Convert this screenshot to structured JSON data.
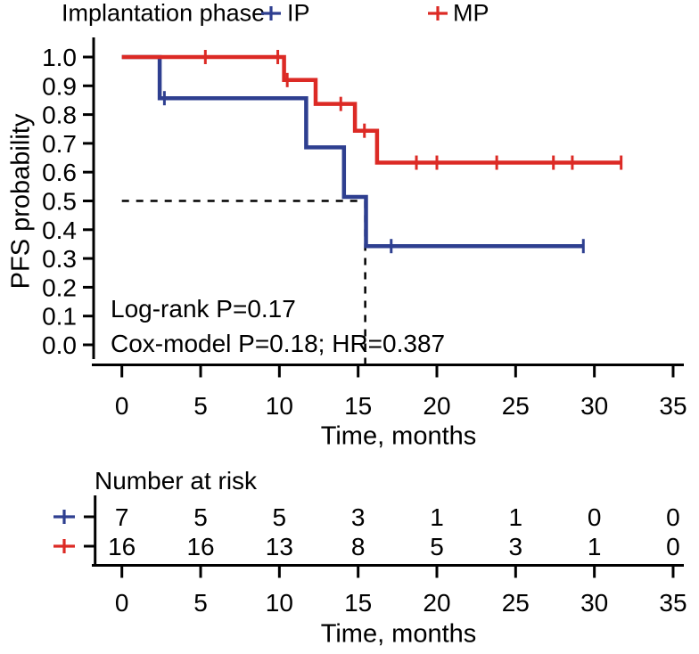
{
  "legend": {
    "title": "Implantation phase",
    "series": [
      {
        "label": "IP",
        "color": "#2e3f90"
      },
      {
        "label": "MP",
        "color": "#dc2a25"
      }
    ]
  },
  "chart_data": {
    "type": "line",
    "subtype": "kaplan-meier-step",
    "title": "",
    "xlabel": "Time, months",
    "ylabel": "PFS probability",
    "xlim": [
      0,
      35
    ],
    "ylim": [
      0.0,
      1.0
    ],
    "x_ticks": [
      0,
      5,
      10,
      15,
      20,
      25,
      30,
      35
    ],
    "y_ticks": [
      0.0,
      0.1,
      0.2,
      0.3,
      0.4,
      0.5,
      0.6,
      0.7,
      0.8,
      0.9,
      1.0
    ],
    "grid": false,
    "legend_position": "top",
    "series": [
      {
        "name": "IP",
        "color": "#2e3f90",
        "steps": [
          [
            0,
            1.0
          ],
          [
            2.4,
            1.0
          ],
          [
            2.4,
            0.857
          ],
          [
            11.7,
            0.857
          ],
          [
            11.7,
            0.686
          ],
          [
            14.1,
            0.686
          ],
          [
            14.1,
            0.514
          ],
          [
            15.5,
            0.514
          ],
          [
            15.5,
            0.343
          ],
          [
            29.3,
            0.343
          ]
        ],
        "censors": [
          [
            2.7,
            0.857
          ],
          [
            17.1,
            0.343
          ],
          [
            29.3,
            0.343
          ]
        ]
      },
      {
        "name": "MP",
        "color": "#dc2a25",
        "steps": [
          [
            0,
            1.0
          ],
          [
            10.3,
            1.0
          ],
          [
            10.3,
            0.92
          ],
          [
            12.3,
            0.92
          ],
          [
            12.3,
            0.837
          ],
          [
            14.8,
            0.837
          ],
          [
            14.8,
            0.744
          ],
          [
            16.2,
            0.744
          ],
          [
            16.2,
            0.633
          ],
          [
            31.7,
            0.633
          ]
        ],
        "censors": [
          [
            5.3,
            1.0
          ],
          [
            9.9,
            1.0
          ],
          [
            10.5,
            0.92
          ],
          [
            13.9,
            0.837
          ],
          [
            15.4,
            0.744
          ],
          [
            18.7,
            0.633
          ],
          [
            20.0,
            0.633
          ],
          [
            23.8,
            0.633
          ],
          [
            27.4,
            0.633
          ],
          [
            28.6,
            0.633
          ],
          [
            31.7,
            0.633
          ]
        ]
      }
    ],
    "median_guide": {
      "y": 0.5,
      "x": 15.45
    },
    "annotations": {
      "logrank": "Log-rank P=0.17",
      "cox": "Cox-model P=0.18; HR=0.387"
    }
  },
  "risk_table": {
    "title": "Number at risk",
    "xlabel": "Time, months",
    "time_points": [
      0,
      5,
      10,
      15,
      20,
      25,
      30,
      35
    ],
    "rows": [
      {
        "name": "IP",
        "color": "#2e3f90",
        "values": [
          7,
          5,
          5,
          3,
          1,
          1,
          0,
          0
        ]
      },
      {
        "name": "MP",
        "color": "#dc2a25",
        "values": [
          16,
          16,
          13,
          8,
          5,
          3,
          1,
          0
        ]
      }
    ]
  },
  "colors": {
    "ip": "#2e3f90",
    "mp": "#dc2a25",
    "axis": "#000000",
    "dashed_guide": "#000000",
    "background": "#ffffff"
  }
}
